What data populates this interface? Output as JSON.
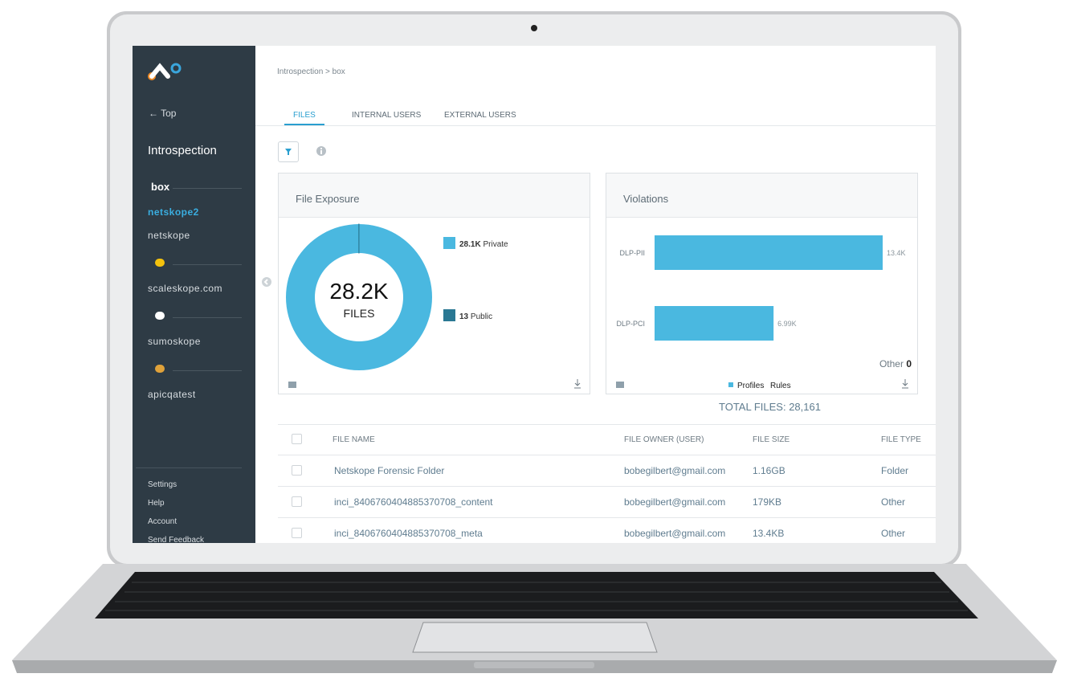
{
  "sidebar": {
    "back": "Top",
    "section": "Introspection",
    "apps": [
      {
        "app": "box",
        "items": [
          "netskope2",
          "netskope"
        ]
      },
      {
        "app": "",
        "items": [
          "scaleskope.com"
        ]
      },
      {
        "app": "",
        "items": [
          "sumoskope"
        ]
      },
      {
        "app": "",
        "items": [
          "apicqatest"
        ]
      }
    ],
    "footer": [
      "Settings",
      "Help",
      "Account",
      "Send Feedback"
    ]
  },
  "breadcrumb": "Introspection > box",
  "tabs": [
    "FILES",
    "INTERNAL USERS",
    "EXTERNAL USERS"
  ],
  "exposure": {
    "type": "donut",
    "title": "File Exposure",
    "center_value": "28.2K",
    "center_label": "FILES",
    "categories": [
      "Private",
      "Public"
    ],
    "values": [
      28148,
      13
    ],
    "value_labels": [
      "28.1K",
      "13"
    ],
    "colors": [
      "#4ab8e0",
      "#2a7893"
    ]
  },
  "violations": {
    "type": "bar",
    "title": "Violations",
    "categories": [
      "DLP-PII",
      "DLP-PCI"
    ],
    "values": [
      13400,
      6990
    ],
    "value_labels": [
      "13.4K",
      "6.99K"
    ],
    "color": "#4ab8e0",
    "other_label": "Other",
    "other_value": 0,
    "legend": [
      "Profiles",
      "Rules"
    ]
  },
  "total": {
    "label": "TOTAL FILES:",
    "value": "28,161"
  },
  "table": {
    "columns": [
      "FILE NAME",
      "FILE OWNER (USER)",
      "FILE SIZE",
      "FILE TYPE"
    ],
    "rows": [
      [
        "Netskope Forensic Folder",
        "bobegilbert@gmail.com",
        "1.16GB",
        "Folder"
      ],
      [
        "inci_8406760404885370708_content",
        "bobegilbert@gmail.com",
        "179KB",
        "Other"
      ],
      [
        "inci_8406760404885370708_meta",
        "bobegilbert@gmail.com",
        "13.4KB",
        "Other"
      ]
    ]
  }
}
